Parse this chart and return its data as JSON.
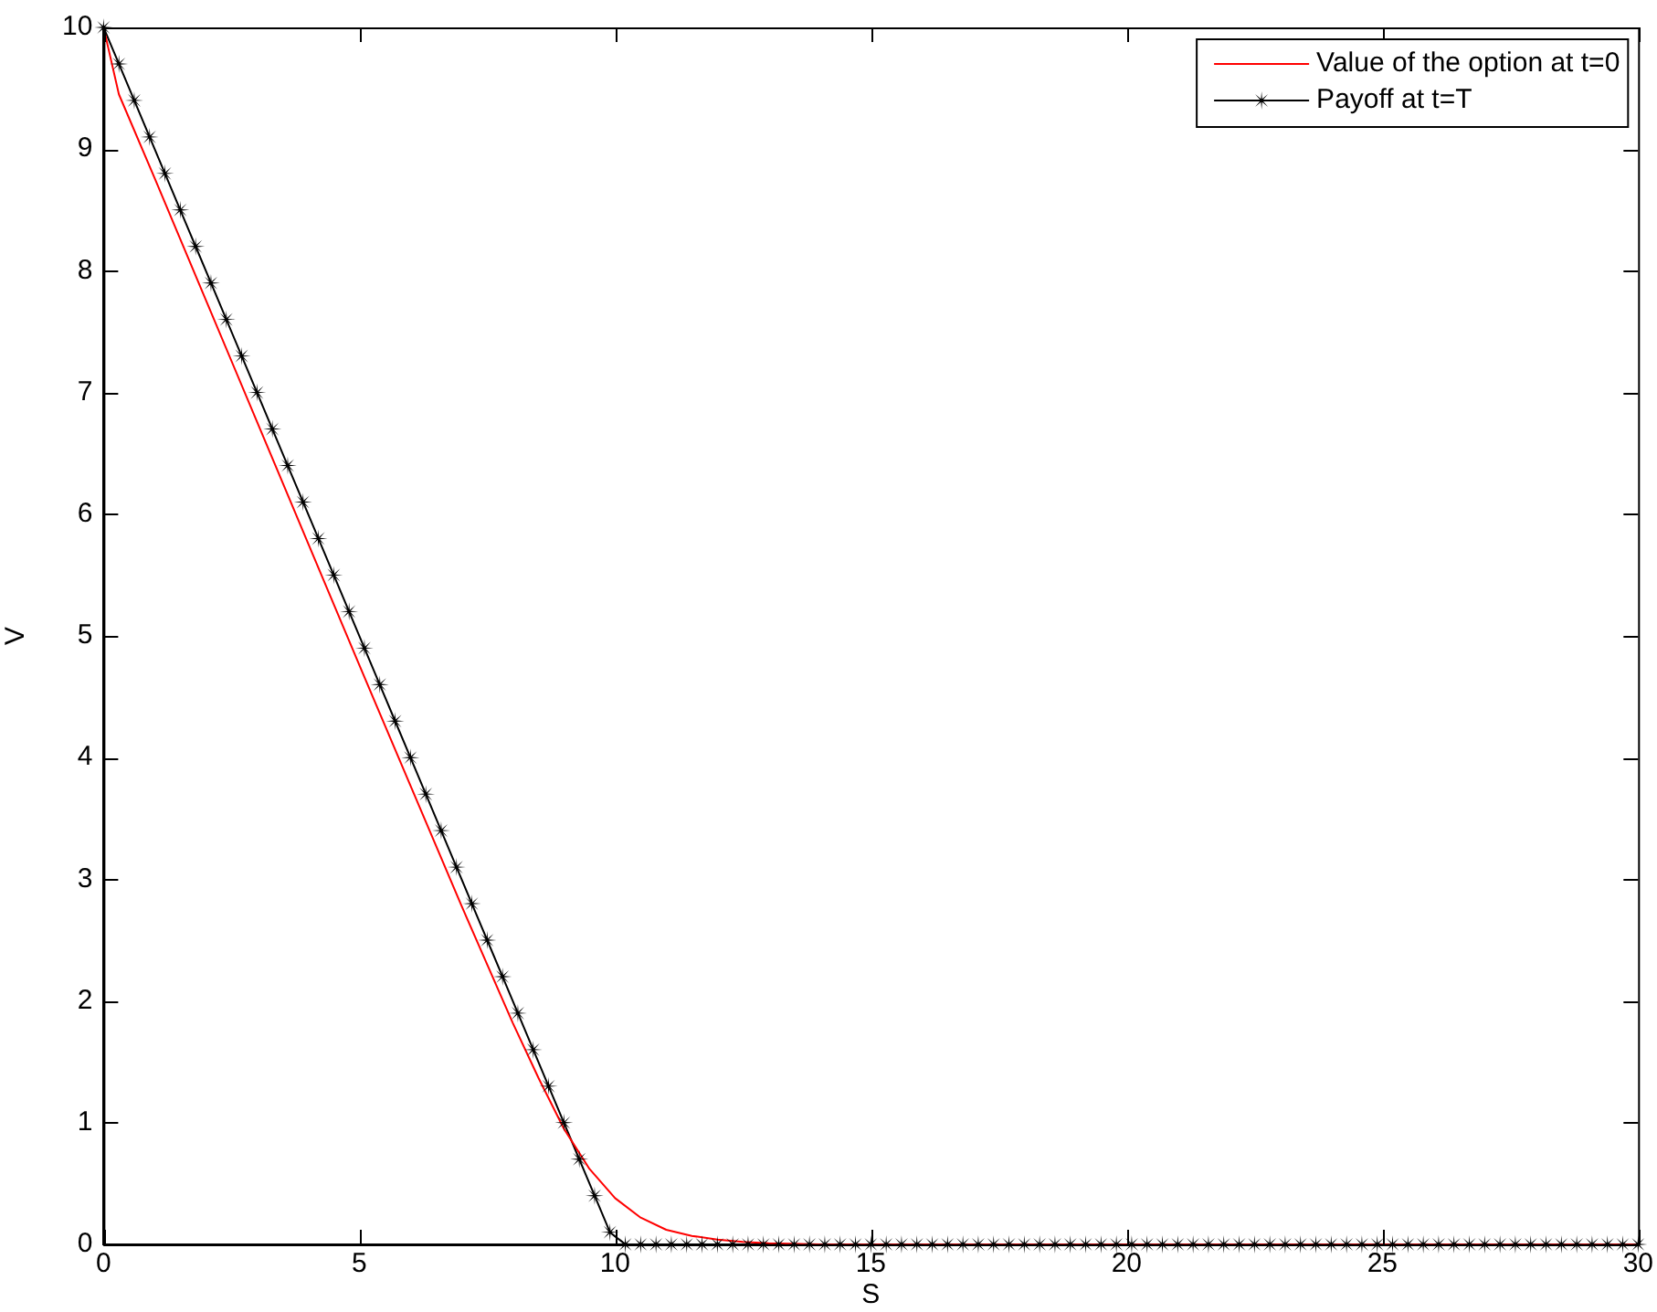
{
  "chart_data": {
    "type": "line",
    "xlabel": "S",
    "ylabel": "V",
    "xlim": [
      0,
      30
    ],
    "xticks": [
      0,
      5,
      10,
      15,
      20,
      25,
      30
    ],
    "ylim": [
      0,
      10
    ],
    "yticks": [
      0,
      1,
      2,
      3,
      4,
      5,
      6,
      7,
      8,
      9,
      10
    ],
    "grid": false,
    "legend": "top right",
    "line_style": "solid",
    "series": [
      {
        "name": "Value of the option at t=0",
        "color": "#ff0000",
        "marker": "none",
        "x": [
          0,
          0.3,
          1,
          2,
          3,
          4,
          5,
          6,
          7,
          8,
          8.5,
          9,
          9.5,
          10,
          10.5,
          11,
          11.5,
          12,
          12.5,
          13,
          14,
          30
        ],
        "values": [
          10,
          9.45,
          8.76,
          7.76,
          6.76,
          5.76,
          4.76,
          3.77,
          2.78,
          1.82,
          1.37,
          0.95,
          0.62,
          0.38,
          0.22,
          0.12,
          0.07,
          0.04,
          0.02,
          0.01,
          0,
          0
        ]
      },
      {
        "name": "Payoff at t=T",
        "color": "#000000",
        "marker": "star",
        "x": [
          0,
          0.3,
          0.6,
          0.9,
          1.2,
          1.5,
          1.8,
          2.1,
          2.4,
          2.7,
          3,
          3.3,
          3.6,
          3.9,
          4.2,
          4.5,
          4.8,
          5.1,
          5.4,
          5.7,
          6,
          6.3,
          6.6,
          6.9,
          7.2,
          7.5,
          7.8,
          8.1,
          8.4,
          8.7,
          9,
          9.3,
          9.6,
          9.9,
          10.2,
          10.5,
          10.8,
          11.1,
          11.4,
          11.7,
          12,
          12.3,
          12.6,
          12.9,
          13.2,
          13.5,
          13.8,
          14.1,
          14.4,
          14.7,
          15,
          15.3,
          15.6,
          15.9,
          16.2,
          16.5,
          16.8,
          17.1,
          17.4,
          17.7,
          18,
          18.3,
          18.6,
          18.9,
          19.2,
          19.5,
          19.8,
          20.1,
          20.4,
          20.7,
          21,
          21.3,
          21.6,
          21.9,
          22.2,
          22.5,
          22.8,
          23.1,
          23.4,
          23.7,
          24,
          24.3,
          24.6,
          24.9,
          25.2,
          25.5,
          25.8,
          26.1,
          26.4,
          26.7,
          27,
          27.3,
          27.6,
          27.9,
          28.2,
          28.5,
          28.8,
          29.1,
          29.4,
          29.7,
          30
        ],
        "values": [
          10,
          9.7,
          9.4,
          9.1,
          8.8,
          8.5,
          8.2,
          7.9,
          7.6,
          7.3,
          7,
          6.7,
          6.4,
          6.1,
          5.8,
          5.5,
          5.2,
          4.9,
          4.6,
          4.3,
          4,
          3.7,
          3.4,
          3.1,
          2.8,
          2.5,
          2.2,
          1.9,
          1.6,
          1.3,
          1,
          0.7,
          0.4,
          0.1,
          0,
          0,
          0,
          0,
          0,
          0,
          0,
          0,
          0,
          0,
          0,
          0,
          0,
          0,
          0,
          0,
          0,
          0,
          0,
          0,
          0,
          0,
          0,
          0,
          0,
          0,
          0,
          0,
          0,
          0,
          0,
          0,
          0,
          0,
          0,
          0,
          0,
          0,
          0,
          0,
          0,
          0,
          0,
          0,
          0,
          0,
          0,
          0,
          0,
          0,
          0,
          0,
          0,
          0,
          0,
          0,
          0,
          0,
          0,
          0,
          0,
          0,
          0,
          0,
          0,
          0,
          0
        ]
      }
    ]
  }
}
